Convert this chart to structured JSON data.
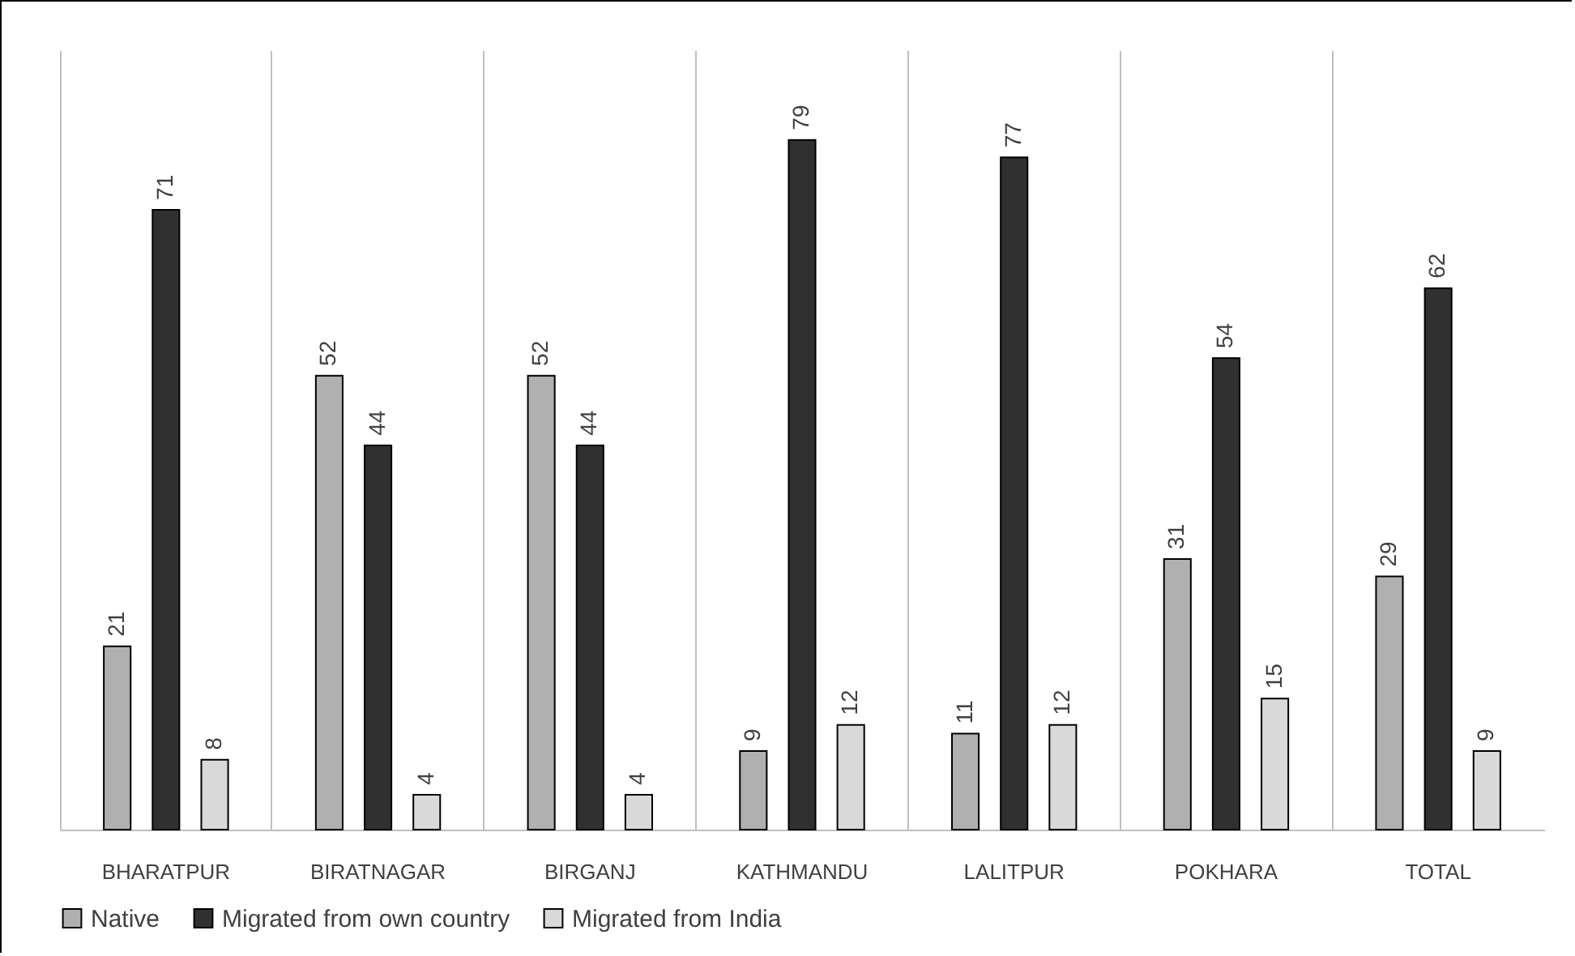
{
  "chart_data": {
    "type": "bar",
    "categories": [
      "BHARATPUR",
      "BIRATNAGAR",
      "BIRGANJ",
      "KATHMANDU",
      "LALITPUR",
      "POKHARA",
      "TOTAL"
    ],
    "series": [
      {
        "name": "Native",
        "color": "#b0b0b0",
        "values": [
          21,
          52,
          52,
          9,
          11,
          31,
          29
        ]
      },
      {
        "name": "Migrated from own country",
        "color": "#303030",
        "values": [
          71,
          44,
          44,
          79,
          77,
          54,
          62
        ]
      },
      {
        "name": "Migrated from India",
        "color": "#d9d9d9",
        "values": [
          8,
          4,
          4,
          12,
          12,
          15,
          9
        ]
      }
    ],
    "data_labels": true,
    "grid": "x",
    "legend": "bottom"
  }
}
